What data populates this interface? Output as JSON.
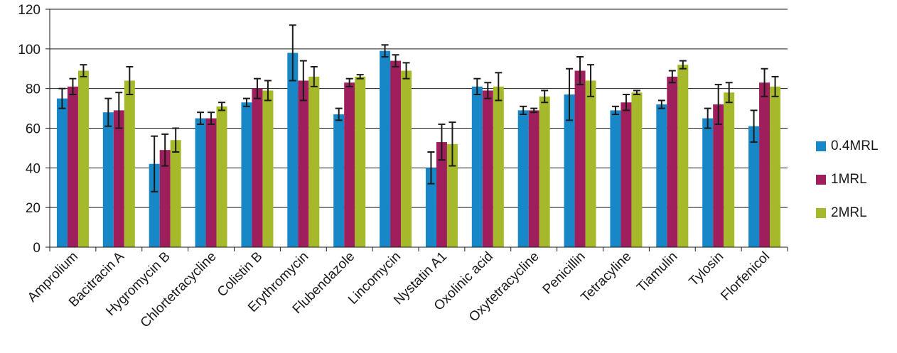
{
  "chart_data": {
    "type": "bar",
    "title": "",
    "xlabel": "",
    "ylabel": "",
    "ylim": [
      0,
      120
    ],
    "yticks": [
      0,
      20,
      40,
      60,
      80,
      100,
      120
    ],
    "grid": "horizontal",
    "legend_position": "right",
    "categories": [
      "Amprolium",
      "Bacitracin A",
      "Hygromycin B",
      "Chlortetracycline",
      "Colistin B",
      "Erythromycin",
      "Flubendazole",
      "Lincomycin",
      "Nystatin A1",
      "Oxolinic acid",
      "Oxytetracycline",
      "Penicillin",
      "Tetracyline",
      "Tiamulin",
      "Tylosin",
      "Florfenicol"
    ],
    "series": [
      {
        "name": "0.4MRL",
        "color": "#1787c8",
        "values": [
          75,
          68,
          42,
          65,
          73,
          98,
          67,
          99,
          40,
          81,
          69,
          77,
          69,
          72,
          65,
          61
        ],
        "errors": [
          5,
          7,
          14,
          3,
          2,
          14,
          3,
          3,
          8,
          4,
          2,
          13,
          2,
          2,
          5,
          8
        ]
      },
      {
        "name": "1MRL",
        "color": "#9e1f5c",
        "values": [
          81,
          69,
          49,
          65,
          80,
          84,
          83,
          94,
          53,
          79,
          69,
          89,
          73,
          86,
          72,
          83
        ],
        "errors": [
          4,
          9,
          8,
          3,
          5,
          10,
          2,
          3,
          9,
          4,
          1,
          7,
          4,
          3,
          10,
          7
        ]
      },
      {
        "name": "2MRL",
        "color": "#a6b92b",
        "values": [
          89,
          84,
          54,
          71,
          79,
          86,
          86,
          89,
          52,
          81,
          76,
          84,
          78,
          92,
          78,
          81
        ],
        "errors": [
          3,
          7,
          6,
          2,
          5,
          5,
          1,
          4,
          11,
          7,
          3,
          8,
          1,
          2,
          5,
          5
        ]
      }
    ]
  }
}
